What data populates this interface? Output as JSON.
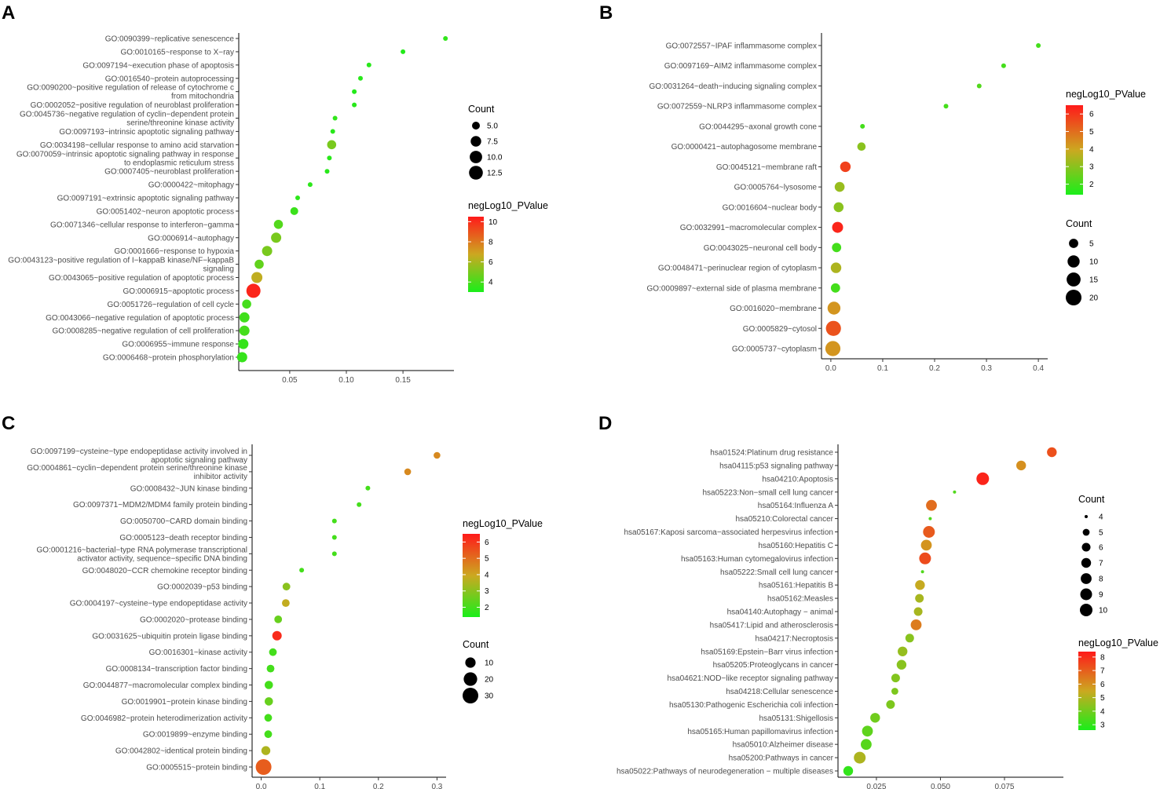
{
  "chart_data": [
    {
      "type": "scatter",
      "panel_label": "A",
      "terms": [
        "GO:0090399~replicative senescence",
        "GO:0010165~response to X−ray",
        "GO:0097194~execution phase of apoptosis",
        "GO:0016540~protein autoprocessing",
        "GO:0090200~positive regulation of release of cytochrome c\nfrom mitochondria",
        "GO:0002052~positive regulation of neuroblast proliferation",
        "GO:0045736~negative regulation of cyclin−dependent protein\nserine/threonine kinase activity",
        "GO:0097193~intrinsic apoptotic signaling pathway",
        "GO:0034198~cellular response to amino acid starvation",
        "GO:0070059~intrinsic apoptotic signaling pathway in response\nto endoplasmic reticulum stress",
        "GO:0007405~neuroblast proliferation",
        "GO:0000422~mitophagy",
        "GO:0097191~extrinsic apoptotic signaling pathway",
        "GO:0051402~neuron apoptotic process",
        "GO:0071346~cellular response to interferon−gamma",
        "GO:0006914~autophagy",
        "GO:0001666~response to hypoxia",
        "GO:0043123~positive regulation of I−kappaB kinase/NF−kappaB\nsignaling",
        "GO:0043065~positive regulation of apoptotic process",
        "GO:0006915~apoptotic process",
        "GO:0051726~regulation of cell cycle",
        "GO:0043066~negative regulation of apoptotic process",
        "GO:0008285~negative regulation of cell proliferation",
        "GO:0006955~immune response",
        "GO:0006468~protein phosphorylation"
      ],
      "x": [
        0.1875,
        0.15,
        0.12,
        0.1125,
        0.107,
        0.107,
        0.09,
        0.088,
        0.087,
        0.085,
        0.083,
        0.068,
        0.057,
        0.054,
        0.04,
        0.038,
        0.03,
        0.023,
        0.021,
        0.018,
        0.012,
        0.01,
        0.01,
        0.009,
        0.008
      ],
      "count": [
        4,
        4,
        4,
        4,
        4,
        4,
        4,
        4,
        6,
        4,
        4,
        4,
        4,
        5,
        6,
        7,
        7,
        6,
        8,
        13,
        6,
        7,
        7,
        7,
        7
      ],
      "neglog10_pvalue": [
        3.5,
        3.2,
        3.3,
        3.3,
        3.2,
        3.3,
        3.5,
        3.3,
        5,
        3.3,
        3.3,
        3.4,
        3.4,
        3.7,
        4.2,
        5,
        5,
        4.5,
        6.5,
        10.2,
        3.9,
        3.8,
        3.9,
        3.6,
        3.6
      ],
      "xticks": [
        0.05,
        0.1,
        0.15
      ],
      "xtick_labels": [
        "0.05",
        "0.10",
        "0.15"
      ],
      "xlim": [
        0.005,
        0.195
      ],
      "legend_count": {
        "title": "Count",
        "values": [
          5.0,
          7.5,
          10.0,
          12.5
        ],
        "labels": [
          "5.0",
          "7.5",
          "10.0",
          "12.5"
        ]
      },
      "legend_color": {
        "title": "negLog10_PValue",
        "ticks": [
          4,
          6,
          8,
          10
        ],
        "labels": [
          "4",
          "6",
          "8",
          "10"
        ],
        "range": [
          3,
          10.5
        ]
      },
      "size_range": [
        4,
        13
      ],
      "color_low": "#1aee1a",
      "color_mid": "#cca820",
      "color_high": "#ff1a1a"
    },
    {
      "type": "scatter",
      "panel_label": "B",
      "terms": [
        "GO:0072557~IPAF inflammasome complex",
        "GO:0097169~AIM2 inflammasome complex",
        "GO:0031264~death−inducing signaling complex",
        "GO:0072559~NLRP3 inflammasome complex",
        "GO:0044295~axonal growth cone",
        "GO:0000421~autophagosome membrane",
        "GO:0045121~membrane raft",
        "GO:0005764~lysosome",
        "GO:0016604~nuclear body",
        "GO:0032991~macromolecular complex",
        "GO:0043025~neuronal cell body",
        "GO:0048471~perinuclear region of cytoplasm",
        "GO:0009897~external side of plasma membrane",
        "GO:0016020~membrane",
        "GO:0005829~cytosol",
        "GO:0005737~cytoplasm"
      ],
      "x": [
        0.4,
        0.333,
        0.286,
        0.222,
        0.061,
        0.059,
        0.028,
        0.017,
        0.015,
        0.013,
        0.011,
        0.01,
        0.009,
        0.006,
        0.005,
        0.004
      ],
      "count": [
        2,
        2,
        2,
        2,
        2,
        4,
        7,
        6,
        6,
        8,
        5,
        7,
        5,
        12,
        18,
        18
      ],
      "neglog10_pvalue": [
        2.0,
        2.0,
        2.2,
        2.0,
        2.0,
        3.0,
        5.8,
        3.2,
        3.0,
        6.3,
        2.0,
        3.5,
        2.0,
        4.3,
        5.5,
        4.3
      ],
      "xticks": [
        0.0,
        0.1,
        0.2,
        0.3,
        0.4
      ],
      "xtick_labels": [
        "0.0",
        "0.1",
        "0.2",
        "0.3",
        "0.4"
      ],
      "xlim": [
        -0.018,
        0.418
      ],
      "legend_count": {
        "title": "Count",
        "values": [
          5,
          10,
          15,
          20
        ],
        "labels": [
          "5",
          "10",
          "15",
          "20"
        ]
      },
      "legend_color": {
        "title": "negLog10_PValue",
        "ticks": [
          2,
          3,
          4,
          5,
          6
        ],
        "labels": [
          "2",
          "3",
          "4",
          "5",
          "6"
        ],
        "range": [
          1.4,
          6.5
        ]
      },
      "size_range": [
        2,
        20
      ],
      "color_low": "#1aee1a",
      "color_mid": "#cca820",
      "color_high": "#ff1a1a"
    },
    {
      "type": "scatter",
      "panel_label": "C",
      "terms": [
        "GO:0097199~cysteine−type endopeptidase activity involved in\napoptotic signaling pathway",
        "GO:0004861~cyclin−dependent protein serine/threonine kinase\ninhibitor activity",
        "GO:0008432~JUN kinase binding",
        "GO:0097371~MDM2/MDM4 family protein binding",
        "GO:0050700~CARD domain binding",
        "GO:0005123~death receptor binding",
        "GO:0001216~bacterial−type RNA polymerase transcriptional\nactivator activity, sequence−specific DNA binding",
        "GO:0048020~CCR chemokine receptor binding",
        "GO:0002039~p53 binding",
        "GO:0004197~cysteine−type endopeptidase activity",
        "GO:0002020~protease binding",
        "GO:0031625~ubiquitin protein ligase binding",
        "GO:0016301~kinase activity",
        "GO:0008134~transcription factor binding",
        "GO:0044877~macromolecular complex binding",
        "GO:0019901~protein kinase binding",
        "GO:0046982~protein heterodimerization activity",
        "GO:0019899~enzyme binding",
        "GO:0042802~identical protein binding",
        "GO:0005515~protein binding"
      ],
      "x": [
        0.3,
        0.25,
        0.182,
        0.167,
        0.125,
        0.125,
        0.125,
        0.069,
        0.043,
        0.042,
        0.029,
        0.027,
        0.02,
        0.016,
        0.013,
        0.013,
        0.012,
        0.012,
        0.008,
        0.004
      ],
      "count": [
        4,
        4,
        3,
        3,
        3,
        3,
        3,
        3,
        5,
        5,
        5,
        8,
        5,
        5,
        6,
        6,
        5,
        5,
        7,
        30
      ],
      "neglog10_pvalue": [
        4.5,
        4.5,
        2.0,
        2.0,
        2.0,
        2.0,
        2.0,
        2.0,
        3.0,
        3.8,
        2.5,
        6.2,
        2.0,
        2.0,
        2.0,
        2.5,
        2.0,
        2.0,
        3.5,
        5.3
      ],
      "xticks": [
        0.0,
        0.1,
        0.2,
        0.3
      ],
      "xtick_labels": [
        "0.0",
        "0.1",
        "0.2",
        "0.3"
      ],
      "xlim": [
        -0.0155,
        0.3155
      ],
      "legend_count": {
        "title": "Count",
        "values": [
          10,
          20,
          30
        ],
        "labels": [
          "10",
          "20",
          "30"
        ]
      },
      "legend_color": {
        "title": "negLog10_PValue",
        "ticks": [
          2,
          3,
          4,
          5,
          6
        ],
        "labels": [
          "2",
          "3",
          "4",
          "5",
          "6"
        ],
        "range": [
          1.4,
          6.5
        ]
      },
      "size_range": [
        3,
        30
      ],
      "color_low": "#1aee1a",
      "color_mid": "#cca820",
      "color_high": "#ff1a1a"
    },
    {
      "type": "scatter",
      "panel_label": "D",
      "terms": [
        "hsa01524:Platinum drug resistance",
        "hsa04115:p53 signaling pathway",
        "hsa04210:Apoptosis",
        "hsa05223:Non−small cell lung cancer",
        "hsa05164:Influenza A",
        "hsa05210:Colorectal cancer",
        "hsa05167:Kaposi sarcoma−associated herpesvirus infection",
        "hsa05160:Hepatitis C",
        "hsa05163:Human cytomegalovirus infection",
        "hsa05222:Small cell lung cancer",
        "hsa05161:Hepatitis B",
        "hsa05162:Measles",
        "hsa04140:Autophagy − animal",
        "hsa05417:Lipid and atherosclerosis",
        "hsa04217:Necroptosis",
        "hsa05169:Epstein−Barr virus infection",
        "hsa05205:Proteoglycans in cancer",
        "hsa04621:NOD−like receptor signaling pathway",
        "hsa04218:Cellular senescence",
        "hsa05130:Pathogenic Escherichia coli infection",
        "hsa05131:Shigellosis",
        "hsa05165:Human papillomavirus infection",
        "hsa05010:Alzheimer disease",
        "hsa05200:Pathways in cancer",
        "hsa05022:Pathways of neurodegeneration − multiple diseases"
      ],
      "x": [
        0.0935,
        0.0815,
        0.0665,
        0.0555,
        0.0465,
        0.046,
        0.0455,
        0.0445,
        0.044,
        0.043,
        0.042,
        0.0418,
        0.0413,
        0.0405,
        0.038,
        0.0352,
        0.0348,
        0.0325,
        0.0322,
        0.0305,
        0.0245,
        0.0215,
        0.021,
        0.0185,
        0.014
      ],
      "count": [
        7,
        7,
        10,
        4,
        8,
        4,
        9,
        8,
        9,
        4,
        7,
        6,
        6,
        8,
        6,
        7,
        7,
        6,
        5,
        6,
        7,
        8,
        8,
        9,
        7
      ],
      "neglog10_pvalue": [
        7.3,
        6.0,
        8.2,
        3.5,
        6.7,
        3.5,
        7.1,
        5.9,
        7.4,
        3.5,
        5.4,
        4.9,
        4.9,
        6.4,
        4.4,
        4.6,
        4.4,
        4.3,
        4.2,
        4.2,
        4.0,
        3.7,
        3.6,
        5.0,
        3.0
      ],
      "xticks": [
        0.025,
        0.05,
        0.075
      ],
      "xtick_labels": [
        "0.025",
        "0.050",
        "0.075"
      ],
      "xlim": [
        0.01,
        0.098
      ],
      "legend_count": {
        "title": "Count",
        "values": [
          4,
          5,
          6,
          7,
          8,
          9,
          10
        ],
        "labels": [
          "4",
          "5",
          "6",
          "7",
          "8",
          "9",
          "10"
        ]
      },
      "legend_color": {
        "title": "negLog10_PValue",
        "ticks": [
          3,
          4,
          5,
          6,
          7,
          8
        ],
        "labels": [
          "3",
          "4",
          "5",
          "6",
          "7",
          "8"
        ],
        "range": [
          2.6,
          8.4
        ]
      },
      "size_range": [
        4,
        10
      ],
      "color_low": "#1aee1a",
      "color_mid": "#cca820",
      "color_high": "#ff1a1a"
    }
  ]
}
